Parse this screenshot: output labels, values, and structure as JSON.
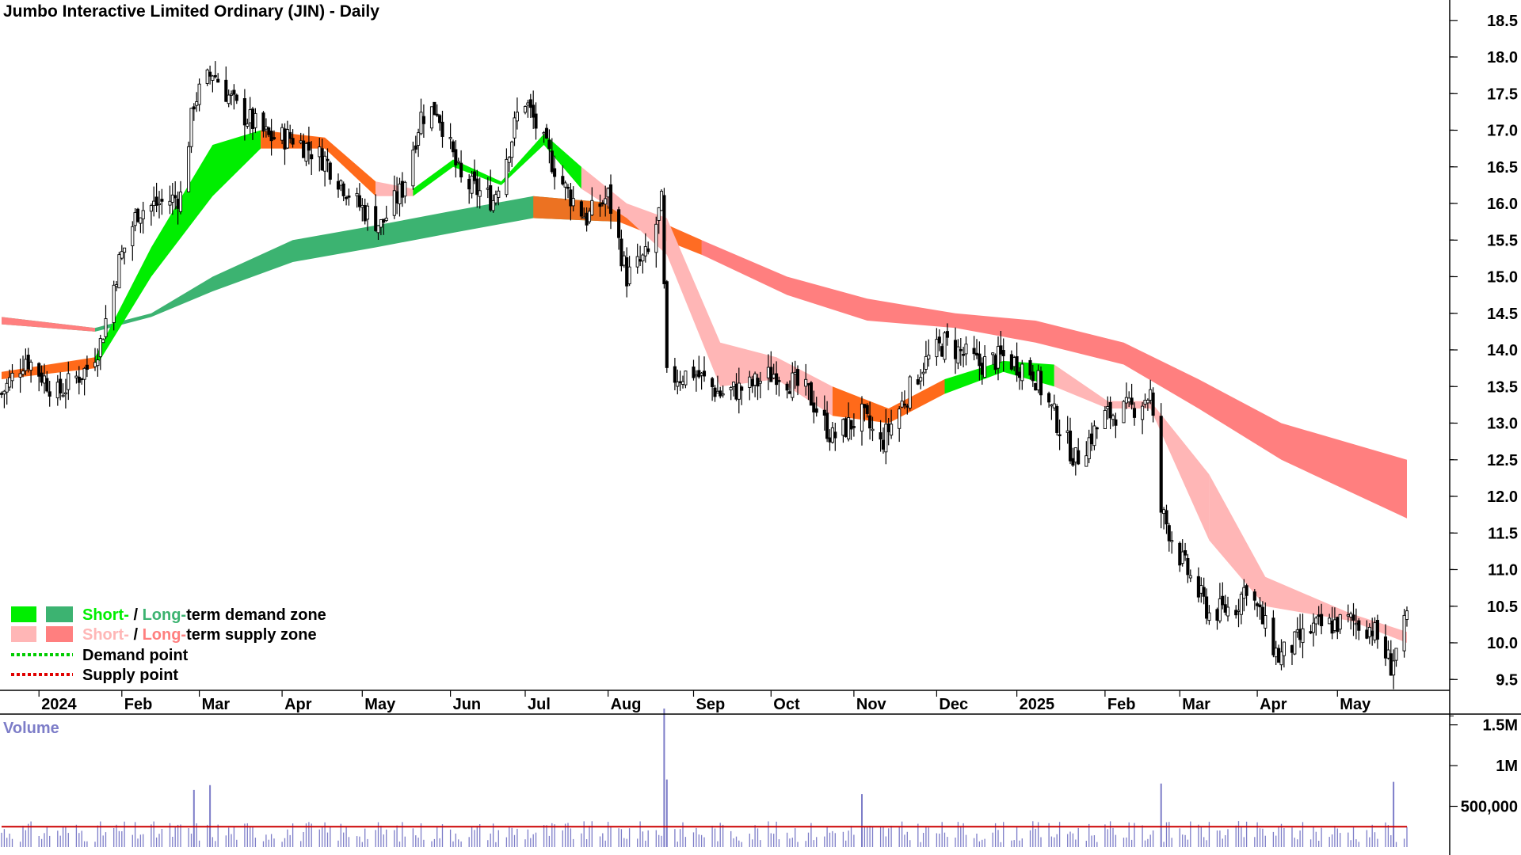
{
  "chart_data": {
    "type": "candlestick",
    "title": "Jumbo Interactive Limited Ordinary (JIN) - Daily",
    "price_axis": {
      "ticks": [
        "18.5",
        "18.0",
        "17.5",
        "17.0",
        "16.5",
        "16.0",
        "15.5",
        "15.0",
        "14.5",
        "14.0",
        "13.5",
        "13.0",
        "12.5",
        "12.0",
        "11.5",
        "11.0",
        "10.5",
        "10.0",
        "9.5"
      ],
      "range": [
        9.3,
        18.8
      ]
    },
    "month_labels": [
      "2024",
      "Feb",
      "Mar",
      "Apr",
      "May",
      "Jun",
      "Jul",
      "Aug",
      "Sep",
      "Oct",
      "Nov",
      "Dec",
      "2025",
      "Feb",
      "Mar",
      "Apr",
      "May"
    ],
    "price_path": [
      {
        "date": "2023-12-18",
        "close": 13.4
      },
      {
        "date": "2023-12-27",
        "close": 13.9
      },
      {
        "date": "2024-01-08",
        "close": 13.4
      },
      {
        "date": "2024-01-19",
        "close": 13.75
      },
      {
        "date": "2024-01-24",
        "close": 14.1
      },
      {
        "date": "2024-01-31",
        "close": 15.2
      },
      {
        "date": "2024-02-07",
        "close": 15.9
      },
      {
        "date": "2024-02-15",
        "close": 16.0
      },
      {
        "date": "2024-02-23",
        "close": 16.1
      },
      {
        "date": "2024-02-28",
        "close": 17.4
      },
      {
        "date": "2024-03-06",
        "close": 17.8
      },
      {
        "date": "2024-03-15",
        "close": 17.3
      },
      {
        "date": "2024-03-27",
        "close": 16.9
      },
      {
        "date": "2024-04-05",
        "close": 16.9
      },
      {
        "date": "2024-04-17",
        "close": 16.6
      },
      {
        "date": "2024-04-29",
        "close": 16.0
      },
      {
        "date": "2024-05-08",
        "close": 15.7
      },
      {
        "date": "2024-05-16",
        "close": 16.2
      },
      {
        "date": "2024-05-23",
        "close": 17.2
      },
      {
        "date": "2024-05-29",
        "close": 17.3
      },
      {
        "date": "2024-06-07",
        "close": 16.3
      },
      {
        "date": "2024-06-19",
        "close": 16.05
      },
      {
        "date": "2024-06-26",
        "close": 16.9
      },
      {
        "date": "2024-06-30",
        "close": 17.5
      },
      {
        "date": "2024-07-08",
        "close": 16.8
      },
      {
        "date": "2024-07-16",
        "close": 16.2
      },
      {
        "date": "2024-07-24",
        "close": 15.8
      },
      {
        "date": "2024-08-01",
        "close": 16.1
      },
      {
        "date": "2024-08-08",
        "close": 15.0
      },
      {
        "date": "2024-08-16",
        "close": 15.3
      },
      {
        "date": "2024-08-21",
        "close": 16.0
      },
      {
        "date": "2024-08-23",
        "close": 13.6
      },
      {
        "date": "2024-09-02",
        "close": 13.7
      },
      {
        "date": "2024-09-12",
        "close": 13.4
      },
      {
        "date": "2024-09-23",
        "close": 13.5
      },
      {
        "date": "2024-10-03",
        "close": 13.7
      },
      {
        "date": "2024-10-15",
        "close": 13.4
      },
      {
        "date": "2024-10-24",
        "close": 12.8
      },
      {
        "date": "2024-11-04",
        "close": 13.1
      },
      {
        "date": "2024-11-11",
        "close": 12.7
      },
      {
        "date": "2024-11-18",
        "close": 13.2
      },
      {
        "date": "2024-11-27",
        "close": 13.8
      },
      {
        "date": "2024-12-05",
        "close": 14.1
      },
      {
        "date": "2024-12-18",
        "close": 13.8
      },
      {
        "date": "2024-12-27",
        "close": 13.9
      },
      {
        "date": "2025-01-07",
        "close": 13.7
      },
      {
        "date": "2025-01-15",
        "close": 13.1
      },
      {
        "date": "2025-01-23",
        "close": 12.5
      },
      {
        "date": "2025-02-03",
        "close": 13.1
      },
      {
        "date": "2025-02-13",
        "close": 13.2
      },
      {
        "date": "2025-02-20",
        "close": 13.4
      },
      {
        "date": "2025-02-24",
        "close": 11.8
      },
      {
        "date": "2025-03-04",
        "close": 11.1
      },
      {
        "date": "2025-03-14",
        "close": 10.4
      },
      {
        "date": "2025-03-24",
        "close": 10.5
      },
      {
        "date": "2025-03-28",
        "close": 10.8
      },
      {
        "date": "2025-04-04",
        "close": 10.2
      },
      {
        "date": "2025-04-09",
        "close": 9.8
      },
      {
        "date": "2025-04-22",
        "close": 10.2
      },
      {
        "date": "2025-05-06",
        "close": 10.3
      },
      {
        "date": "2025-05-14",
        "close": 10.2
      },
      {
        "date": "2025-05-21",
        "close": 9.7
      },
      {
        "date": "2025-05-27",
        "close": 10.3
      }
    ],
    "short_term_zone": [
      {
        "date": "2023-12-18",
        "upper": 13.7,
        "lower": 13.6
      },
      {
        "date": "2024-01-22",
        "upper": 13.9,
        "lower": 13.75
      },
      {
        "date": "2024-02-12",
        "upper": 15.4,
        "lower": 15.0
      },
      {
        "date": "2024-03-06",
        "upper": 16.8,
        "lower": 16.1
      },
      {
        "date": "2024-03-24",
        "upper": 17.0,
        "lower": 16.75
      },
      {
        "date": "2024-04-17",
        "upper": 16.9,
        "lower": 16.75
      },
      {
        "date": "2024-05-06",
        "upper": 16.3,
        "lower": 16.1
      },
      {
        "date": "2024-05-20",
        "upper": 16.2,
        "lower": 16.1
      },
      {
        "date": "2024-06-04",
        "upper": 16.6,
        "lower": 16.5
      },
      {
        "date": "2024-06-22",
        "upper": 16.3,
        "lower": 16.25
      },
      {
        "date": "2024-07-08",
        "upper": 16.95,
        "lower": 16.8
      },
      {
        "date": "2024-07-22",
        "upper": 16.5,
        "lower": 16.2
      },
      {
        "date": "2024-08-08",
        "upper": 16.0,
        "lower": 15.8
      },
      {
        "date": "2024-08-23",
        "upper": 15.8,
        "lower": 15.3
      },
      {
        "date": "2024-09-12",
        "upper": 14.1,
        "lower": 13.5
      },
      {
        "date": "2024-10-03",
        "upper": 13.9,
        "lower": 13.6
      },
      {
        "date": "2024-10-24",
        "upper": 13.5,
        "lower": 13.1
      },
      {
        "date": "2024-11-14",
        "upper": 13.2,
        "lower": 13.0
      },
      {
        "date": "2024-12-05",
        "upper": 13.6,
        "lower": 13.4
      },
      {
        "date": "2024-12-27",
        "upper": 13.85,
        "lower": 13.7
      },
      {
        "date": "2025-01-15",
        "upper": 13.8,
        "lower": 13.5
      },
      {
        "date": "2025-02-04",
        "upper": 13.3,
        "lower": 13.2
      },
      {
        "date": "2025-02-20",
        "upper": 13.3,
        "lower": 13.2
      },
      {
        "date": "2025-03-14",
        "upper": 12.3,
        "lower": 11.4
      },
      {
        "date": "2025-04-04",
        "upper": 10.9,
        "lower": 10.5
      },
      {
        "date": "2025-05-06",
        "upper": 10.4,
        "lower": 10.3
      },
      {
        "date": "2025-05-27",
        "upper": 10.15,
        "lower": 10.0
      }
    ],
    "long_term_zone": [
      {
        "date": "2023-12-18",
        "upper": 14.45,
        "lower": 14.35
      },
      {
        "date": "2024-01-22",
        "upper": 14.3,
        "lower": 14.25
      },
      {
        "date": "2024-02-12",
        "upper": 14.5,
        "lower": 14.45
      },
      {
        "date": "2024-03-06",
        "upper": 15.0,
        "lower": 14.8
      },
      {
        "date": "2024-04-05",
        "upper": 15.5,
        "lower": 15.2
      },
      {
        "date": "2024-05-06",
        "upper": 15.7,
        "lower": 15.4
      },
      {
        "date": "2024-06-04",
        "upper": 15.9,
        "lower": 15.6
      },
      {
        "date": "2024-07-04",
        "upper": 16.1,
        "lower": 15.8
      },
      {
        "date": "2024-08-05",
        "upper": 16.0,
        "lower": 15.75
      },
      {
        "date": "2024-09-05",
        "upper": 15.5,
        "lower": 15.3
      },
      {
        "date": "2024-10-07",
        "upper": 15.0,
        "lower": 14.75
      },
      {
        "date": "2024-11-06",
        "upper": 14.7,
        "lower": 14.4
      },
      {
        "date": "2024-12-09",
        "upper": 14.5,
        "lower": 14.3
      },
      {
        "date": "2025-01-08",
        "upper": 14.4,
        "lower": 14.1
      },
      {
        "date": "2025-02-10",
        "upper": 14.1,
        "lower": 13.8
      },
      {
        "date": "2025-03-10",
        "upper": 13.6,
        "lower": 13.2
      },
      {
        "date": "2025-04-10",
        "upper": 13.0,
        "lower": 12.5
      },
      {
        "date": "2025-05-27",
        "upper": 12.5,
        "lower": 11.7
      }
    ],
    "zone_colors": {
      "short_demand": "#00ee00",
      "long_demand": "#3cb371",
      "short_supply": "#ffb6b6",
      "long_supply": "#ff7f7f",
      "transition": "#ff6a1a"
    },
    "volume_axis": {
      "ticks": [
        "1.5M",
        "1M",
        "500,000"
      ],
      "range": [
        0,
        1700000
      ]
    },
    "volume_spikes": [
      {
        "date": "2024-02-28",
        "volume": 700000
      },
      {
        "date": "2024-03-05",
        "volume": 760000
      },
      {
        "date": "2024-08-22",
        "volume": 1700000
      },
      {
        "date": "2024-08-23",
        "volume": 830000
      },
      {
        "date": "2024-11-04",
        "volume": 650000
      },
      {
        "date": "2025-02-24",
        "volume": 780000
      },
      {
        "date": "2025-05-22",
        "volume": 800000
      }
    ],
    "volume_average": 250000,
    "legend": [
      {
        "items": [
          {
            "text": "Short-",
            "color": "#00ee00"
          },
          {
            "text": " / ",
            "color": "#000000"
          },
          {
            "text": "Long-",
            "color": "#3cb371"
          },
          {
            "text": "term demand zone",
            "color": "#000000"
          }
        ],
        "swatches": [
          "#00ee00",
          "#3cb371"
        ]
      },
      {
        "items": [
          {
            "text": "Short-",
            "color": "#ffb6b6"
          },
          {
            "text": " / ",
            "color": "#000000"
          },
          {
            "text": "Long-",
            "color": "#ff7f7f"
          },
          {
            "text": "term supply zone",
            "color": "#000000"
          }
        ],
        "swatches": [
          "#ffb6b6",
          "#ff7f7f"
        ]
      },
      {
        "items": [
          {
            "text": "Demand point",
            "color": "#000000"
          }
        ],
        "line": "#00cc00"
      },
      {
        "items": [
          {
            "text": "Supply point",
            "color": "#000000"
          }
        ],
        "line": "#e00000"
      }
    ],
    "volume_label": "Volume"
  }
}
